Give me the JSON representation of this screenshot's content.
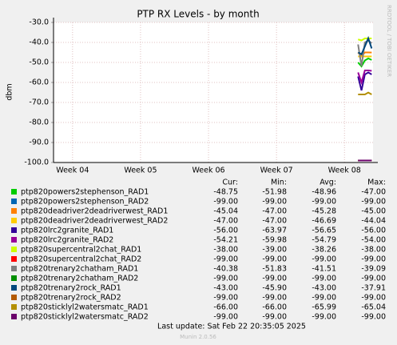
{
  "chart_data": {
    "type": "line",
    "title": "PTP RX Levels - by month",
    "y_label": "dbm",
    "side_label": "RRDTOOL / TOBI OETIKER",
    "xlim": [
      3.72,
      8.42
    ],
    "xticks": [
      {
        "value": 4,
        "label": "Week 04"
      },
      {
        "value": 5,
        "label": "Week 05"
      },
      {
        "value": 6,
        "label": "Week 06"
      },
      {
        "value": 7,
        "label": "Week 07"
      },
      {
        "value": 8,
        "label": "Week 08"
      }
    ],
    "ylim": [
      -100,
      -30
    ],
    "yticks": [
      {
        "value": -30,
        "label": "-30.0"
      },
      {
        "value": -40,
        "label": "-40.0"
      },
      {
        "value": -50,
        "label": "-50.0"
      },
      {
        "value": -60,
        "label": "-60.0"
      },
      {
        "value": -70,
        "label": "-70.0"
      },
      {
        "value": -80,
        "label": "-80.0"
      },
      {
        "value": -90,
        "label": "-90.0"
      },
      {
        "value": -100,
        "label": "-100.0"
      }
    ],
    "grid": true,
    "x": [
      8.2,
      8.25,
      8.3,
      8.35,
      8.4
    ],
    "series": [
      {
        "name": "ptp820powers2stephenson_RAD1",
        "color": "#00cc00",
        "values": [
          -50,
          -51.98,
          -49,
          -48,
          -48.75
        ]
      },
      {
        "name": "ptp820powers2stephenson_RAD2",
        "color": "#0066b3",
        "values": [
          -99,
          -99,
          -99,
          -99,
          -99
        ]
      },
      {
        "name": "ptp820deadriver2deadriverwest_RAD1",
        "color": "#ff8000",
        "values": [
          -45,
          -47,
          -45,
          -45,
          -45.04
        ]
      },
      {
        "name": "ptp820deadriver2deadriverwest_RAD2",
        "color": "#ffcc00",
        "values": [
          -47,
          -47,
          -47,
          -47,
          -47
        ]
      },
      {
        "name": "ptp820lrc2granite_RAD1",
        "color": "#330099",
        "values": [
          -57,
          -63.97,
          -56,
          -55,
          -56
        ]
      },
      {
        "name": "ptp820lrc2granite_RAD2",
        "color": "#990099",
        "values": [
          -55,
          -59.98,
          -54,
          -54,
          -54.21
        ]
      },
      {
        "name": "ptp820supercentral2chat_RAD1",
        "color": "#ccff00",
        "values": [
          -38.5,
          -39,
          -38,
          -38,
          -38
        ]
      },
      {
        "name": "ptp820supercentral2chat_RAD2",
        "color": "#ff0000",
        "values": [
          -99,
          -99,
          -99,
          -99,
          -99
        ]
      },
      {
        "name": "ptp820trenary2chatham_RAD1",
        "color": "#808080",
        "values": [
          -41,
          -51.83,
          -40,
          -39.09,
          -40.38
        ]
      },
      {
        "name": "ptp820trenary2chatham_RAD2",
        "color": "#008f00",
        "values": [
          -99,
          -99,
          -99,
          -99,
          -99
        ]
      },
      {
        "name": "ptp820trenary2rock_RAD1",
        "color": "#00487d",
        "values": [
          -45,
          -45.9,
          -42,
          -37.91,
          -43
        ]
      },
      {
        "name": "ptp820trenary2rock_RAD2",
        "color": "#b35a00",
        "values": [
          -99,
          -99,
          -99,
          -99,
          -99
        ]
      },
      {
        "name": "ptp820sticklyl2watersmatc_RAD1",
        "color": "#b38f00",
        "values": [
          -66,
          -66,
          -66,
          -65.04,
          -66
        ]
      },
      {
        "name": "ptp820sticklyl2watersmatc_RAD2",
        "color": "#6b006b",
        "values": [
          -99,
          -99,
          -99,
          -99,
          -99
        ]
      }
    ],
    "legend_headers": [
      "Cur:",
      "Min:",
      "Avg:",
      "Max:"
    ],
    "legend_stats": [
      [
        "-48.75",
        "-51.98",
        "-48.96",
        "-47.00"
      ],
      [
        "-99.00",
        "-99.00",
        "-99.00",
        "-99.00"
      ],
      [
        "-45.04",
        "-47.00",
        "-45.28",
        "-45.00"
      ],
      [
        "-47.00",
        "-47.00",
        "-46.69",
        "-44.04"
      ],
      [
        "-56.00",
        "-63.97",
        "-56.65",
        "-56.00"
      ],
      [
        "-54.21",
        "-59.98",
        "-54.79",
        "-54.00"
      ],
      [
        "-38.00",
        "-39.00",
        "-38.26",
        "-38.00"
      ],
      [
        "-99.00",
        "-99.00",
        "-99.00",
        "-99.00"
      ],
      [
        "-40.38",
        "-51.83",
        "-41.51",
        "-39.09"
      ],
      [
        "-99.00",
        "-99.00",
        "-99.00",
        "-99.00"
      ],
      [
        "-43.00",
        "-45.90",
        "-43.00",
        "-37.91"
      ],
      [
        "-99.00",
        "-99.00",
        "-99.00",
        "-99.00"
      ],
      [
        "-66.00",
        "-66.00",
        "-65.99",
        "-65.04"
      ],
      [
        "-99.00",
        "-99.00",
        "-99.00",
        "-99.00"
      ]
    ],
    "last_update": "Last update: Sat Feb 22 20:35:05 2025",
    "footer": "Munin 2.0.56"
  }
}
